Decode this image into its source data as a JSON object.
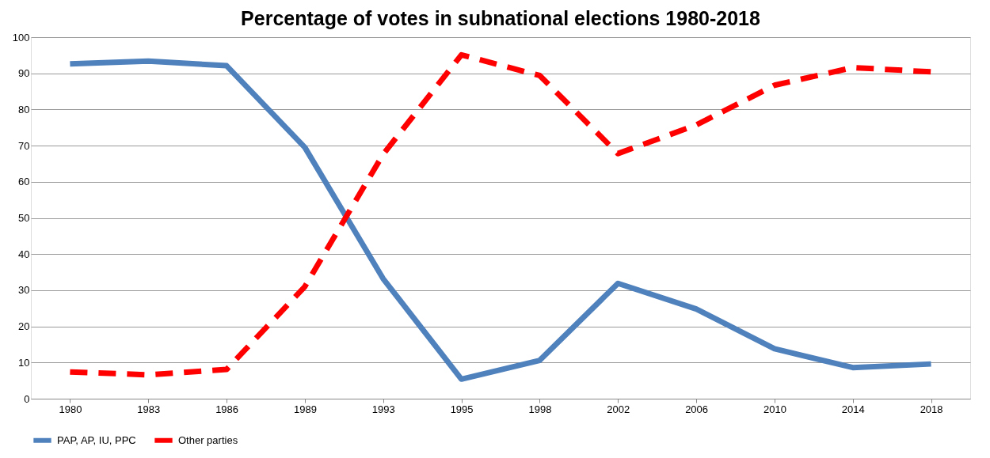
{
  "chart_data": {
    "type": "line",
    "title": "Percentage of votes in subnational elections 1980-2018",
    "categories": [
      "1980",
      "1983",
      "1986",
      "1989",
      "1993",
      "1995",
      "1998",
      "2002",
      "2006",
      "2010",
      "2014",
      "2018"
    ],
    "series": [
      {
        "name": "PAP, AP, IU, PPC",
        "color": "#4f81bd",
        "line_style": "solid",
        "values": [
          92.6,
          93.4,
          92.1,
          69.5,
          33.2,
          5.4,
          10.6,
          31.9,
          24.8,
          13.8,
          8.6,
          9.6
        ]
      },
      {
        "name": "Other parties",
        "color": "#ff0000",
        "line_style": "dashed",
        "values": [
          7.4,
          6.6,
          8.1,
          31.0,
          67.6,
          95.1,
          89.4,
          67.8,
          75.7,
          86.7,
          91.6,
          90.4
        ]
      }
    ],
    "ylim": [
      0,
      100
    ],
    "yticks": [
      0,
      10,
      20,
      30,
      40,
      50,
      60,
      70,
      80,
      90,
      100
    ],
    "grid": "y",
    "legend": "bottom",
    "marker": "none"
  }
}
